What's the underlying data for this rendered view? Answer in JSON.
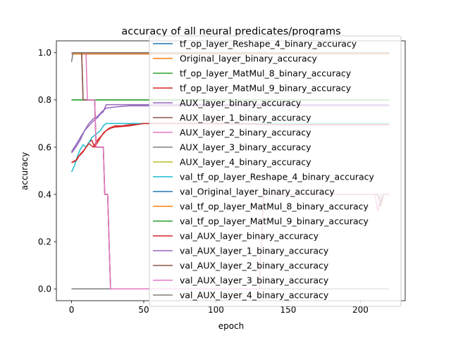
{
  "chart_data": {
    "type": "line",
    "title": "accuracy of all neural predicates/programs",
    "xlabel": "epoch",
    "ylabel": "accuracy",
    "xlim": [
      -10.5,
      231
    ],
    "ylim": [
      -0.05,
      1.05
    ],
    "xticks": [
      0,
      50,
      100,
      150,
      200
    ],
    "yticks": [
      0.0,
      0.2,
      0.4,
      0.6,
      0.8,
      1.0
    ],
    "xtick_labels": [
      "0",
      "50",
      "100",
      "150",
      "200"
    ],
    "ytick_labels": [
      "0.0",
      "0.2",
      "0.4",
      "0.6",
      "0.8",
      "1.0"
    ],
    "grid": false,
    "legend_placement": "upper right, overlapping plot",
    "series": [
      {
        "name": "tf_op_layer_Reshape_4_binary_accuracy",
        "color": "#1f77b4",
        "points": [
          [
            0,
            0.995
          ],
          [
            220,
            0.995
          ]
        ]
      },
      {
        "name": "Original_layer_binary_accuracy",
        "color": "#ff7f0e",
        "points": [
          [
            0,
            0.995
          ],
          [
            220,
            0.995
          ]
        ]
      },
      {
        "name": "tf_op_layer_MatMul_8_binary_accuracy",
        "color": "#2ca02c",
        "points": [
          [
            0,
            0.8
          ],
          [
            220,
            0.8
          ]
        ]
      },
      {
        "name": "tf_op_layer_MatMul_9_binary_accuracy",
        "color": "#d62728",
        "points": [
          [
            0,
            0.535
          ],
          [
            3,
            0.54
          ],
          [
            5,
            0.56
          ],
          [
            8,
            0.58
          ],
          [
            10,
            0.6
          ],
          [
            12,
            0.62
          ],
          [
            14,
            0.63
          ],
          [
            16,
            0.6
          ],
          [
            18,
            0.62
          ],
          [
            20,
            0.64
          ],
          [
            22,
            0.66
          ],
          [
            24,
            0.67
          ],
          [
            26,
            0.68
          ],
          [
            28,
            0.685
          ],
          [
            30,
            0.69
          ],
          [
            35,
            0.69
          ],
          [
            40,
            0.695
          ],
          [
            50,
            0.7
          ],
          [
            60,
            0.7
          ],
          [
            80,
            0.7
          ],
          [
            100,
            0.7
          ],
          [
            150,
            0.695
          ],
          [
            200,
            0.695
          ],
          [
            220,
            0.695
          ]
        ]
      },
      {
        "name": "AUX_layer_binary_accuracy",
        "color": "#9467bd",
        "points": [
          [
            0,
            0.575
          ],
          [
            3,
            0.6
          ],
          [
            6,
            0.63
          ],
          [
            9,
            0.67
          ],
          [
            12,
            0.69
          ],
          [
            15,
            0.71
          ],
          [
            18,
            0.725
          ],
          [
            20,
            0.74
          ],
          [
            22,
            0.75
          ],
          [
            24,
            0.78
          ],
          [
            30,
            0.78
          ],
          [
            40,
            0.78
          ],
          [
            50,
            0.78
          ],
          [
            100,
            0.78
          ],
          [
            150,
            0.78
          ],
          [
            200,
            0.78
          ],
          [
            220,
            0.78
          ]
        ]
      },
      {
        "name": "AUX_layer_1_binary_accuracy",
        "color": "#8c564b",
        "points": [
          [
            0,
            1.0
          ],
          [
            7,
            1.0
          ],
          [
            8,
            0.8
          ],
          [
            16,
            0.8
          ],
          [
            17,
            0.6
          ],
          [
            22,
            0.6
          ],
          [
            23,
            0.4
          ],
          [
            25,
            0.4
          ],
          [
            26,
            0.2
          ],
          [
            27,
            0.0
          ],
          [
            60,
            0.0
          ],
          [
            120,
            0.0
          ],
          [
            130,
            0.0
          ],
          [
            133,
            0.4
          ],
          [
            140,
            0.4
          ],
          [
            150,
            0.4
          ],
          [
            160,
            0.4
          ],
          [
            200,
            0.4
          ],
          [
            212,
            0.4
          ],
          [
            214,
            0.35
          ],
          [
            216,
            0.4
          ],
          [
            220,
            0.4
          ]
        ]
      },
      {
        "name": "AUX_layer_2_binary_accuracy",
        "color": "#e377c2",
        "points": [
          [
            0,
            1.0
          ],
          [
            220,
            1.0
          ]
        ]
      },
      {
        "name": "AUX_layer_3_binary_accuracy",
        "color": "#7f7f7f",
        "points": [
          [
            0,
            0.0
          ],
          [
            220,
            0.0
          ]
        ]
      },
      {
        "name": "AUX_layer_4_binary_accuracy",
        "color": "#bcbd22",
        "points": [
          [
            0,
            1.0
          ],
          [
            220,
            1.0
          ]
        ]
      },
      {
        "name": "val_tf_op_layer_Reshape_4_binary_accuracy",
        "color": "#17becf",
        "points": [
          [
            0,
            0.495
          ],
          [
            2,
            0.52
          ],
          [
            4,
            0.56
          ],
          [
            6,
            0.59
          ],
          [
            8,
            0.61
          ],
          [
            10,
            0.6
          ],
          [
            12,
            0.62
          ],
          [
            14,
            0.64
          ],
          [
            16,
            0.65
          ],
          [
            18,
            0.66
          ],
          [
            20,
            0.67
          ],
          [
            22,
            0.69
          ],
          [
            24,
            0.7
          ],
          [
            30,
            0.7
          ],
          [
            50,
            0.7
          ],
          [
            100,
            0.7
          ],
          [
            150,
            0.7
          ],
          [
            200,
            0.7
          ],
          [
            220,
            0.7
          ]
        ]
      },
      {
        "name": "val_Original_layer_binary_accuracy",
        "color": "#1f77b4",
        "points": [
          [
            0,
            0.995
          ],
          [
            220,
            0.995
          ]
        ]
      },
      {
        "name": "val_tf_op_layer_MatMul_8_binary_accuracy",
        "color": "#ff7f0e",
        "points": [
          [
            0,
            0.995
          ],
          [
            220,
            0.995
          ]
        ]
      },
      {
        "name": "val_tf_op_layer_MatMul_9_binary_accuracy",
        "color": "#2ca02c",
        "points": [
          [
            0,
            0.8
          ],
          [
            220,
            0.8
          ]
        ]
      },
      {
        "name": "val_AUX_layer_binary_accuracy",
        "color": "#d62728",
        "points": [
          [
            0,
            0.535
          ],
          [
            3,
            0.545
          ],
          [
            6,
            0.57
          ],
          [
            9,
            0.59
          ],
          [
            12,
            0.615
          ],
          [
            15,
            0.6
          ],
          [
            18,
            0.63
          ],
          [
            21,
            0.65
          ],
          [
            24,
            0.67
          ],
          [
            27,
            0.68
          ],
          [
            30,
            0.685
          ],
          [
            40,
            0.69
          ],
          [
            50,
            0.7
          ],
          [
            100,
            0.7
          ],
          [
            150,
            0.695
          ],
          [
            220,
            0.695
          ]
        ]
      },
      {
        "name": "val_AUX_layer_1_binary_accuracy",
        "color": "#9467bd",
        "points": [
          [
            0,
            0.58
          ],
          [
            3,
            0.61
          ],
          [
            6,
            0.64
          ],
          [
            9,
            0.67
          ],
          [
            12,
            0.7
          ],
          [
            15,
            0.72
          ],
          [
            18,
            0.73
          ],
          [
            21,
            0.75
          ],
          [
            24,
            0.765
          ],
          [
            30,
            0.77
          ],
          [
            40,
            0.775
          ],
          [
            50,
            0.775
          ],
          [
            100,
            0.775
          ],
          [
            150,
            0.775
          ],
          [
            200,
            0.775
          ],
          [
            220,
            0.775
          ]
        ]
      },
      {
        "name": "val_AUX_layer_2_binary_accuracy",
        "color": "#8c564b",
        "points": [
          [
            0,
            1.0
          ],
          [
            7,
            1.0
          ],
          [
            8,
            0.8
          ],
          [
            16,
            0.8
          ],
          [
            17,
            0.6
          ],
          [
            22,
            0.6
          ],
          [
            23,
            0.4
          ],
          [
            25,
            0.4
          ],
          [
            26,
            0.2
          ],
          [
            27,
            0.0
          ],
          [
            130,
            0.0
          ],
          [
            133,
            0.4
          ],
          [
            212,
            0.4
          ],
          [
            214,
            0.37
          ],
          [
            216,
            0.4
          ],
          [
            220,
            0.4
          ]
        ]
      },
      {
        "name": "val_AUX_layer_3_binary_accuracy",
        "color": "#e377c2",
        "points": [
          [
            0,
            1.0
          ],
          [
            10,
            1.0
          ],
          [
            11,
            0.8
          ],
          [
            16,
            0.8
          ],
          [
            17,
            0.6
          ],
          [
            22,
            0.6
          ],
          [
            23,
            0.4
          ],
          [
            25,
            0.4
          ],
          [
            26,
            0.2
          ],
          [
            27,
            0.0
          ],
          [
            130,
            0.0
          ],
          [
            133,
            0.4
          ],
          [
            210,
            0.4
          ],
          [
            212,
            0.33
          ],
          [
            214,
            0.4
          ],
          [
            220,
            0.4
          ]
        ]
      },
      {
        "name": "val_AUX_layer_4_binary_accuracy",
        "color": "#7f7f7f",
        "points": [
          [
            0,
            0.96
          ],
          [
            1,
            1.0
          ],
          [
            220,
            1.0
          ]
        ]
      }
    ]
  }
}
